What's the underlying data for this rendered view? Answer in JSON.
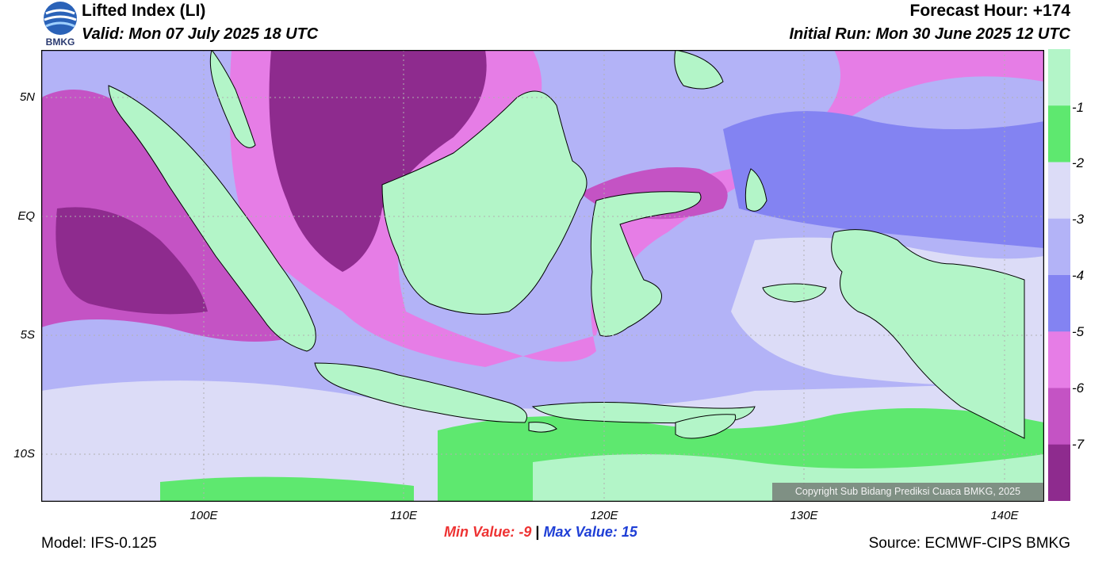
{
  "header": {
    "title": "Lifted Index (LI)",
    "valid": "Valid: Mon 07 July 2025 18 UTC",
    "forecast_hour": "Forecast Hour: +174",
    "initial_run": "Initial Run: Mon 30 June 2025 12 UTC",
    "logo_text": "BMKG"
  },
  "map": {
    "lat_labels": [
      "5N",
      "EQ",
      "5S",
      "10S"
    ],
    "lon_labels": [
      "100E",
      "110E",
      "120E",
      "130E",
      "140E"
    ],
    "copyright": "Copyright Sub Bidang Prediksi Cuaca BMKG, 2025"
  },
  "colorbar": {
    "labels": [
      "-1",
      "-2",
      "-3",
      "-4",
      "-5",
      "-6",
      "-7"
    ],
    "colors": [
      "#b3f5c8",
      "#5ee86f",
      "#dcdcf7",
      "#b3b3f7",
      "#8383f2",
      "#e67de6",
      "#c453c4",
      "#8e2b8e"
    ]
  },
  "footer": {
    "min_label": "Min Value:",
    "min_value": "-9",
    "separator": "|",
    "max_label": "Max Value:",
    "max_value": "15",
    "model": "Model: IFS-0.125",
    "source": "Source: ECMWF-CIPS BMKG"
  }
}
